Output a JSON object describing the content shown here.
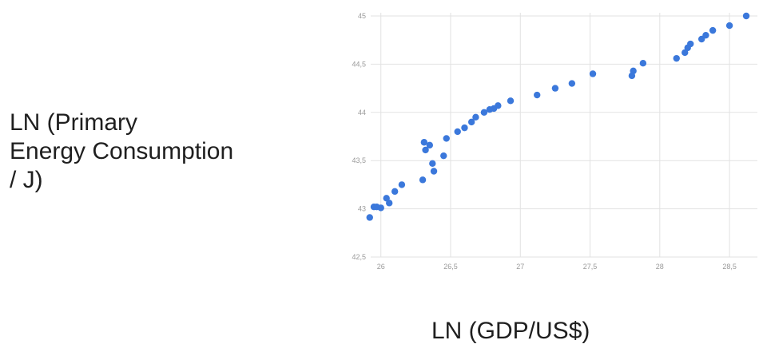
{
  "chart_data": {
    "type": "scatter",
    "title": "",
    "xlabel": "LN (GDP/US$)",
    "ylabel": "LN (Primary\nEnergy Consumption\n/ J)",
    "xlim": [
      25.95,
      28.7
    ],
    "ylim": [
      42.5,
      45
    ],
    "x_ticks": [
      26,
      26.5,
      27,
      27.5,
      28,
      28.5
    ],
    "x_tick_labels": [
      "26",
      "26,5",
      "27",
      "27,5",
      "28",
      "28,5"
    ],
    "y_ticks": [
      42.5,
      43,
      43.5,
      44,
      44.5,
      45
    ],
    "y_tick_labels": [
      "42,5",
      "43",
      "43,5",
      "44",
      "44,5",
      "45"
    ],
    "grid": true,
    "legend": "none",
    "point_color": "#3b78db",
    "grid_color": "#e2e2e2",
    "series": [
      {
        "x": [
          25.92,
          25.95,
          25.97,
          26.0,
          26.04,
          26.06,
          26.1,
          26.15,
          26.3,
          26.32,
          26.35,
          26.31,
          26.37,
          26.38,
          26.45,
          26.47,
          26.55,
          26.6,
          26.65,
          26.68,
          26.74,
          26.78,
          26.81,
          26.84,
          26.93,
          27.12,
          27.25,
          27.37,
          27.52,
          27.8,
          27.81,
          27.88,
          28.12,
          28.18,
          28.2,
          28.22,
          28.3,
          28.33,
          28.38,
          28.5,
          28.62
        ],
        "y": [
          42.91,
          43.02,
          43.02,
          43.01,
          43.11,
          43.06,
          43.18,
          43.25,
          43.3,
          43.61,
          43.66,
          43.69,
          43.47,
          43.39,
          43.55,
          43.73,
          43.8,
          43.84,
          43.9,
          43.95,
          44.0,
          44.03,
          44.04,
          44.07,
          44.12,
          44.18,
          44.25,
          44.3,
          44.4,
          44.38,
          44.43,
          44.51,
          44.56,
          44.62,
          44.67,
          44.71,
          44.76,
          44.8,
          44.85,
          44.9,
          45.0
        ]
      }
    ]
  }
}
